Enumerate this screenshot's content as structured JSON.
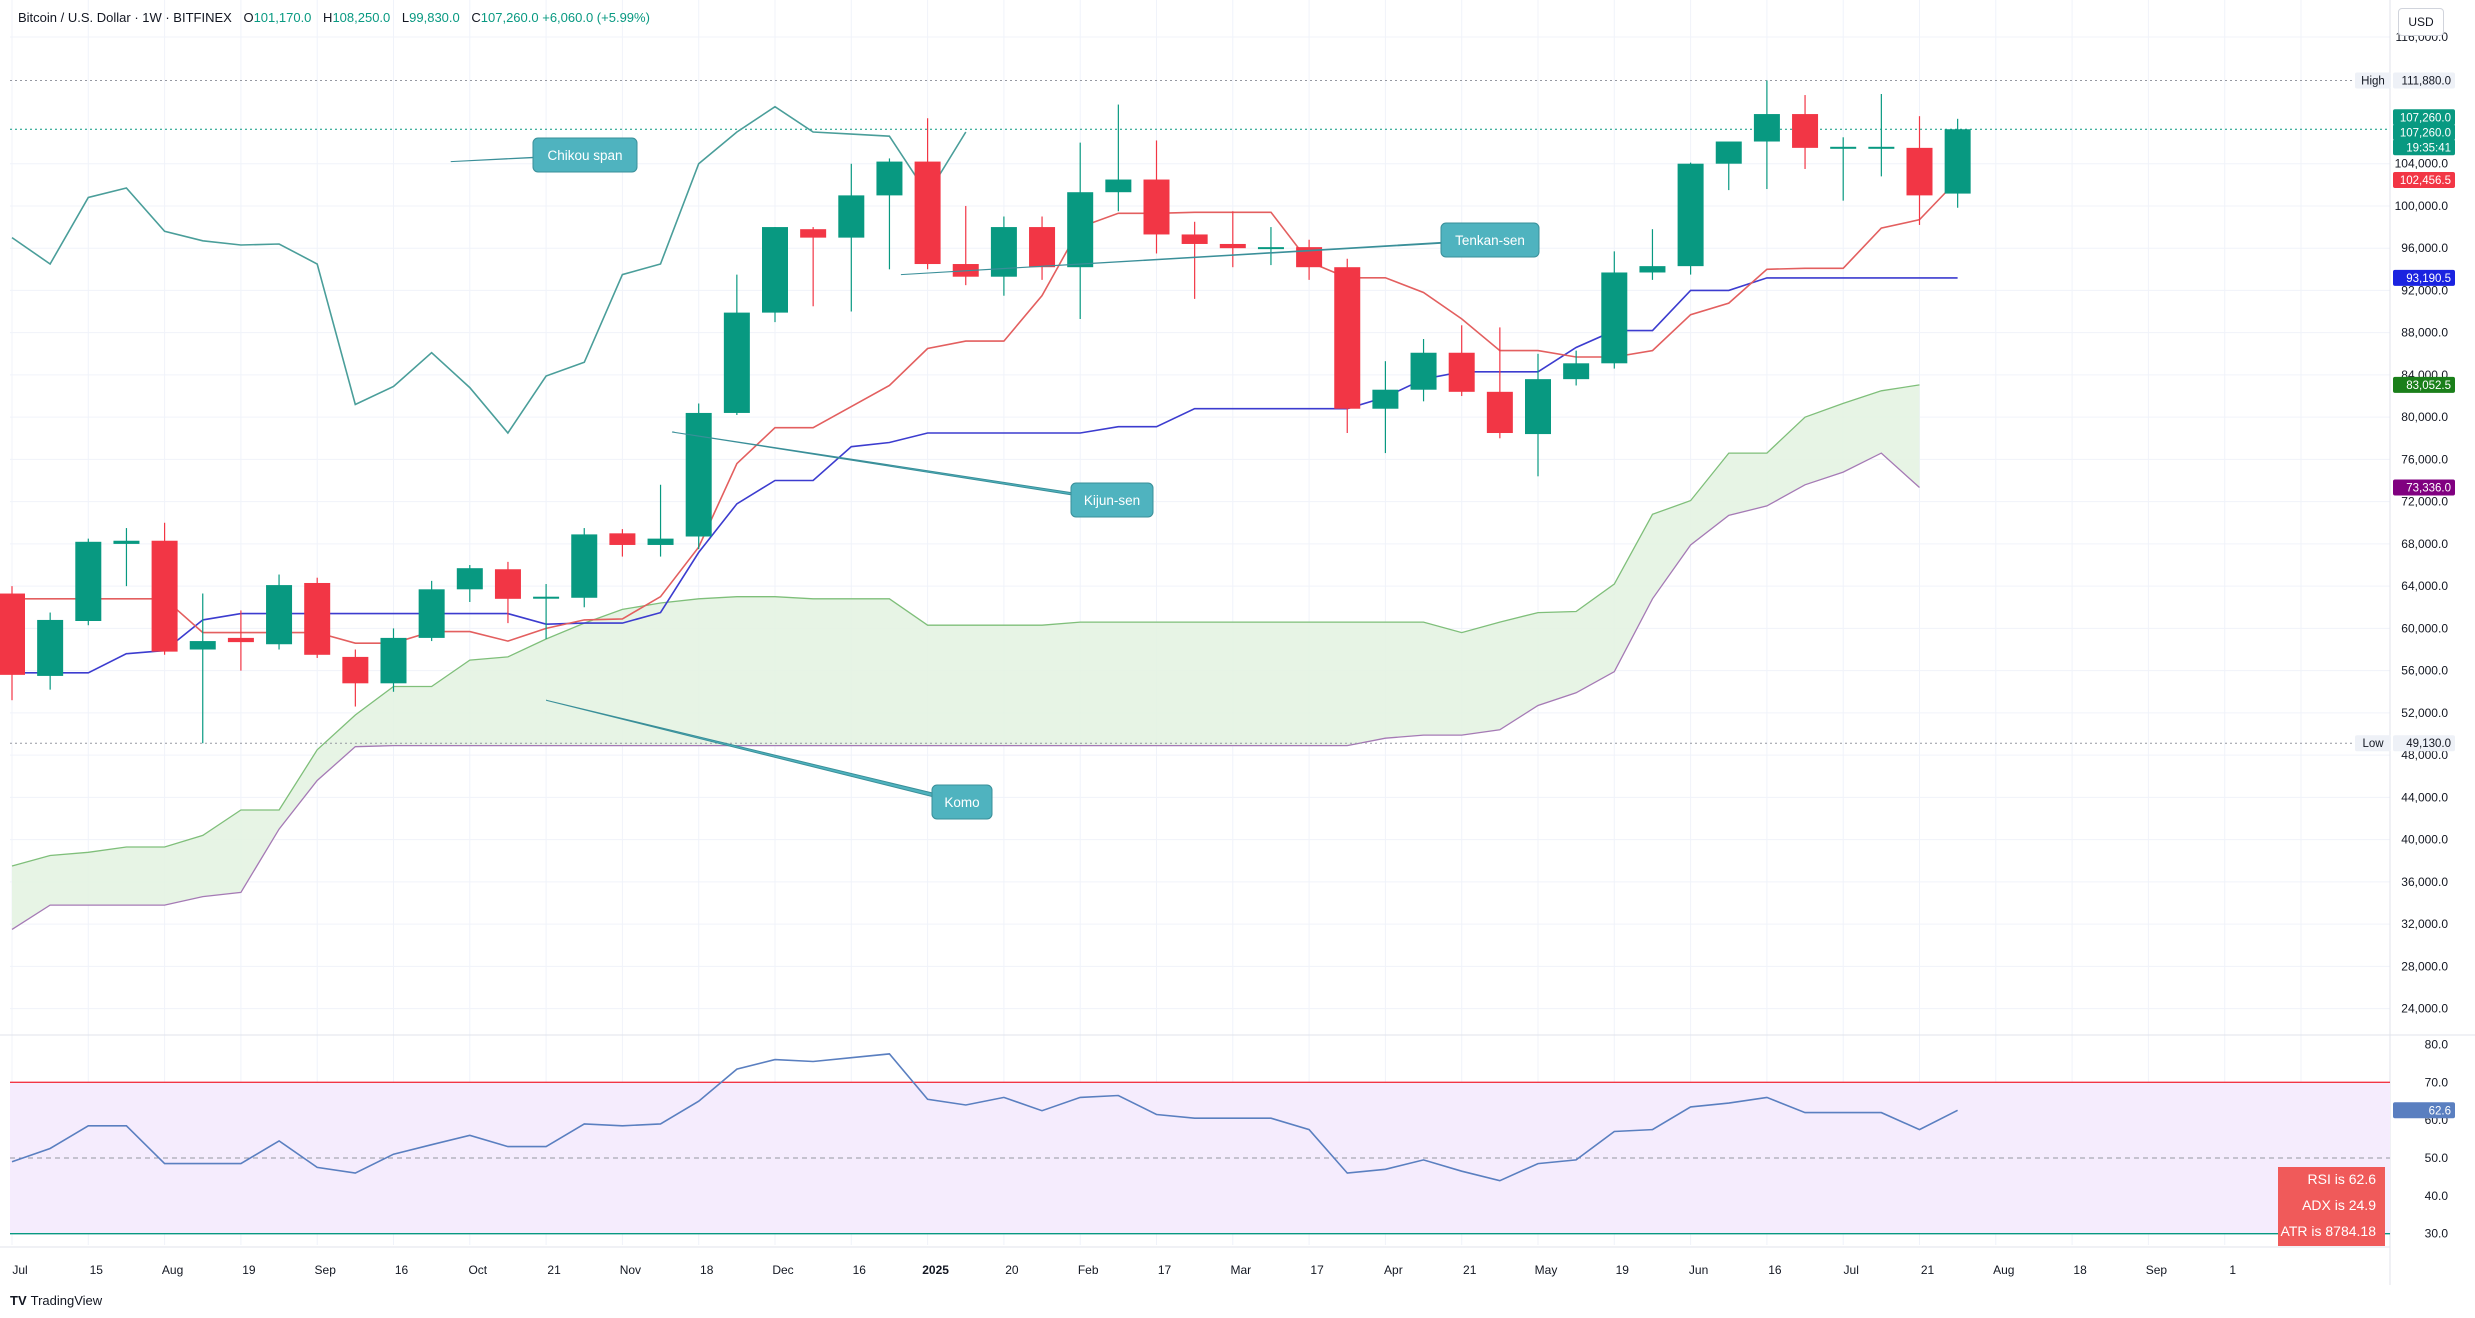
{
  "header": {
    "symbol": "Bitcoin / U.S. Dollar · 1W · BITFINEX",
    "o_label": "O",
    "o_value": "101,170.0",
    "h_label": "H",
    "h_value": "108,250.0",
    "l_label": "L",
    "l_value": "99,830.0",
    "c_label": "C",
    "c_value": "107,260.0",
    "change": "+6,060.0 (+5.99%)"
  },
  "currency": "USD",
  "branding": {
    "logo": "TV",
    "name": "TradingView"
  },
  "colors": {
    "up": "#089981",
    "down": "#f23645",
    "tenkan": "#e35f5f",
    "kijun": "#3c3ccf",
    "chikou": "#4a9e9a",
    "kumo_fill": "#e3f2e0",
    "kumo_a": "#7fbf7a",
    "kumo_b": "#a57ab5",
    "rsi": "#5a7fc0",
    "rsi_band": "#f5ecfd",
    "callout": "#4fb3bf"
  },
  "chart_data": {
    "type": "candlestick",
    "title": "Bitcoin / U.S. Dollar · 1W · BITFINEX",
    "x_ticks": [
      "Jul",
      "15",
      "Aug",
      "19",
      "Sep",
      "16",
      "Oct",
      "21",
      "Nov",
      "18",
      "Dec",
      "16",
      "2025",
      "20",
      "Feb",
      "17",
      "Mar",
      "17",
      "Apr",
      "21",
      "May",
      "19",
      "Jun",
      "16",
      "Jul",
      "21",
      "Aug",
      "18",
      "Sep",
      "1"
    ],
    "y_ticks": [
      "116,000.0",
      "104,000.0",
      "100,000.0",
      "96,000.0",
      "92,000.0",
      "88,000.0",
      "84,000.0",
      "80,000.0",
      "76,000.0",
      "72,000.0",
      "68,000.0",
      "64,000.0",
      "60,000.0",
      "56,000.0",
      "52,000.0",
      "48,000.0",
      "44,000.0",
      "40,000.0",
      "36,000.0",
      "32,000.0",
      "28,000.0",
      "24,000.0"
    ],
    "ylim": [
      21500,
      119500
    ],
    "candles": [
      {
        "o": 63300,
        "h": 64000,
        "l": 53200,
        "c": 55600
      },
      {
        "o": 55500,
        "h": 61500,
        "l": 54200,
        "c": 60800
      },
      {
        "o": 60700,
        "h": 68500,
        "l": 60300,
        "c": 68200
      },
      {
        "o": 68000,
        "h": 69500,
        "l": 64000,
        "c": 68300
      },
      {
        "o": 68300,
        "h": 70000,
        "l": 57500,
        "c": 57800
      },
      {
        "o": 58000,
        "h": 63300,
        "l": 49130,
        "c": 58800
      },
      {
        "o": 59100,
        "h": 61700,
        "l": 56000,
        "c": 58700
      },
      {
        "o": 58500,
        "h": 65100,
        "l": 58000,
        "c": 64100
      },
      {
        "o": 64300,
        "h": 64800,
        "l": 57200,
        "c": 57500
      },
      {
        "o": 57300,
        "h": 58000,
        "l": 52600,
        "c": 54800
      },
      {
        "o": 54800,
        "h": 60000,
        "l": 54000,
        "c": 59100
      },
      {
        "o": 59100,
        "h": 64500,
        "l": 58800,
        "c": 63700
      },
      {
        "o": 63700,
        "h": 66000,
        "l": 62500,
        "c": 65700
      },
      {
        "o": 65600,
        "h": 66300,
        "l": 60500,
        "c": 62800
      },
      {
        "o": 62900,
        "h": 64200,
        "l": 59000,
        "c": 63000
      },
      {
        "o": 62900,
        "h": 69500,
        "l": 62000,
        "c": 68900
      },
      {
        "o": 69000,
        "h": 69400,
        "l": 66800,
        "c": 67900
      },
      {
        "o": 67900,
        "h": 73600,
        "l": 66800,
        "c": 68500
      },
      {
        "o": 68700,
        "h": 81300,
        "l": 67500,
        "c": 80400
      },
      {
        "o": 80400,
        "h": 93500,
        "l": 80200,
        "c": 89900
      },
      {
        "o": 89900,
        "h": 98000,
        "l": 89000,
        "c": 98000
      },
      {
        "o": 97800,
        "h": 98000,
        "l": 90500,
        "c": 97000
      },
      {
        "o": 97000,
        "h": 104000,
        "l": 90000,
        "c": 101000
      },
      {
        "o": 101000,
        "h": 104500,
        "l": 94000,
        "c": 104200
      },
      {
        "o": 104200,
        "h": 108300,
        "l": 94000,
        "c": 94500
      },
      {
        "o": 94500,
        "h": 100000,
        "l": 92500,
        "c": 93300
      },
      {
        "o": 93300,
        "h": 99000,
        "l": 91500,
        "c": 98000
      },
      {
        "o": 98000,
        "h": 99000,
        "l": 93000,
        "c": 94200
      },
      {
        "o": 94200,
        "h": 106000,
        "l": 89300,
        "c": 101300
      },
      {
        "o": 101300,
        "h": 109600,
        "l": 99500,
        "c": 102500
      },
      {
        "o": 102500,
        "h": 106200,
        "l": 95500,
        "c": 97300
      },
      {
        "o": 97300,
        "h": 98500,
        "l": 91200,
        "c": 96400
      },
      {
        "o": 96400,
        "h": 99500,
        "l": 94200,
        "c": 96000
      },
      {
        "o": 96000,
        "h": 98000,
        "l": 94400,
        "c": 96100
      },
      {
        "o": 96100,
        "h": 96800,
        "l": 93000,
        "c": 94200
      },
      {
        "o": 94200,
        "h": 95000,
        "l": 78500,
        "c": 80800
      },
      {
        "o": 80800,
        "h": 85300,
        "l": 76600,
        "c": 82600
      },
      {
        "o": 82600,
        "h": 87400,
        "l": 81500,
        "c": 86100
      },
      {
        "o": 86100,
        "h": 88700,
        "l": 82000,
        "c": 82400
      },
      {
        "o": 82400,
        "h": 88500,
        "l": 78000,
        "c": 78500
      },
      {
        "o": 78400,
        "h": 86000,
        "l": 74400,
        "c": 83600
      },
      {
        "o": 83600,
        "h": 86300,
        "l": 83000,
        "c": 85100
      },
      {
        "o": 85100,
        "h": 95700,
        "l": 84600,
        "c": 93700
      },
      {
        "o": 93700,
        "h": 97800,
        "l": 93000,
        "c": 94300
      },
      {
        "o": 94300,
        "h": 104100,
        "l": 93500,
        "c": 104000
      },
      {
        "o": 104000,
        "h": 106000,
        "l": 101500,
        "c": 106100
      },
      {
        "o": 106100,
        "h": 111880,
        "l": 101600,
        "c": 108700
      },
      {
        "o": 108700,
        "h": 110500,
        "l": 103500,
        "c": 105500
      },
      {
        "o": 105500,
        "h": 106500,
        "l": 100500,
        "c": 105600
      },
      {
        "o": 105600,
        "h": 110600,
        "l": 102800,
        "c": 105600
      },
      {
        "o": 105500,
        "h": 108500,
        "l": 98200,
        "c": 101000
      },
      {
        "o": 101170,
        "h": 108250,
        "l": 99830,
        "c": 107260
      }
    ],
    "tenkan_sen": [
      62800,
      62800,
      62800,
      62800,
      62800,
      59600,
      59600,
      59600,
      59600,
      58600,
      58600,
      59700,
      59700,
      58800,
      60000,
      60800,
      60900,
      63000,
      67700,
      75600,
      79000,
      79000,
      81000,
      83000,
      86500,
      87200,
      87200,
      91500,
      98000,
      99300,
      99300,
      99400,
      99400,
      99400,
      94700,
      93200,
      93200,
      91800,
      89300,
      86300,
      86300,
      85700,
      85700,
      86300,
      89700,
      90800,
      94000,
      94100,
      94100,
      97900,
      98700,
      102456
    ],
    "kijun_sen": [
      55800,
      55800,
      55800,
      57600,
      57900,
      60800,
      61400,
      61400,
      61400,
      61400,
      61400,
      61400,
      61400,
      61400,
      60400,
      60500,
      60500,
      61500,
      67200,
      71800,
      74000,
      74000,
      77200,
      77600,
      78500,
      78500,
      78500,
      78500,
      78500,
      79100,
      79100,
      80800,
      80800,
      80800,
      80800,
      80800,
      81900,
      83600,
      84300,
      84300,
      84300,
      86600,
      88200,
      88200,
      92000,
      92000,
      93190,
      93190,
      93190,
      93190,
      93190,
      93190
    ],
    "chikou_span": [
      97000,
      94500,
      100800,
      101700,
      97600,
      96700,
      96300,
      96400,
      94500,
      81200,
      82900,
      86100,
      82800,
      78500,
      83900,
      85200,
      93500,
      94500,
      104000,
      107000,
      109400,
      107000,
      106800,
      106600,
      101100,
      107000
    ],
    "senkou_a": [
      37500,
      38500,
      38800,
      39300,
      39300,
      40400,
      42800,
      42800,
      48500,
      51800,
      54500,
      54500,
      57000,
      57300,
      59000,
      60500,
      61800,
      62400,
      62800,
      63000,
      63000,
      62800,
      62800,
      62800,
      60300,
      60300,
      60300,
      60300,
      60600,
      60600,
      60600,
      60600,
      60600,
      60600,
      60600,
      60600,
      60600,
      60600,
      59600,
      60600,
      61500,
      61600,
      64200,
      70800,
      72100,
      76600,
      76600,
      80000,
      81300,
      82500,
      83052
    ],
    "senkou_b": [
      31500,
      33800,
      33800,
      33800,
      33800,
      34600,
      35000,
      41000,
      45600,
      48800,
      48900,
      48900,
      48900,
      48900,
      48900,
      48900,
      48900,
      48900,
      48900,
      48900,
      48900,
      48900,
      48900,
      48900,
      48900,
      48900,
      48900,
      48900,
      48900,
      48900,
      48900,
      48900,
      48900,
      48900,
      48900,
      48900,
      49600,
      49900,
      49900,
      50400,
      52700,
      53900,
      55900,
      62800,
      67900,
      70700,
      71600,
      73600,
      74800,
      76600,
      73336
    ],
    "rsi": {
      "values": [
        49,
        52.5,
        58.5,
        58.5,
        48.5,
        48.5,
        48.5,
        54.5,
        47.5,
        46,
        51,
        53.5,
        56,
        53,
        53,
        59,
        58.5,
        59,
        65,
        73.5,
        76,
        75.5,
        76.5,
        77.5,
        65.5,
        64,
        66,
        62.5,
        66,
        66.5,
        61.5,
        60.5,
        60.5,
        60.5,
        57.5,
        46,
        47,
        49.5,
        46.5,
        44,
        48.5,
        49.5,
        57,
        57.5,
        63.5,
        64.5,
        66,
        62,
        62,
        62,
        57.5,
        62.6
      ],
      "ticks": [
        "80.0",
        "70.0",
        "60.0",
        "50.0",
        "40.0",
        "30.0"
      ],
      "ylim": [
        27,
        82.5
      ],
      "upper": 70,
      "mid": 50,
      "lower": 30
    },
    "price_tags": [
      {
        "text": "High",
        "value": "111,880.0",
        "kind": "high"
      },
      {
        "text": "",
        "value": "107,260.0",
        "kind": "close"
      },
      {
        "text": "",
        "value": "107,260.0",
        "kind": "close2"
      },
      {
        "text": "",
        "value": "19:35:41",
        "kind": "timer"
      },
      {
        "text": "",
        "value": "102,456.5",
        "kind": "tenkan"
      },
      {
        "text": "",
        "value": "93,190.5",
        "kind": "kijun"
      },
      {
        "text": "",
        "value": "83,052.5",
        "kind": "senkou_a"
      },
      {
        "text": "",
        "value": "73,336.0",
        "kind": "senkou_b"
      },
      {
        "text": "Low",
        "value": "49,130.0",
        "kind": "low"
      },
      {
        "text": "",
        "value": "62.6",
        "kind": "rsi"
      }
    ],
    "annotations": [
      "Chikou span",
      "Tenkan-sen",
      "Kijun-sen",
      "Komo"
    ],
    "stats": [
      "RSI is 62.6",
      "ADX is 24.9",
      "ATR is 8784.18"
    ]
  }
}
